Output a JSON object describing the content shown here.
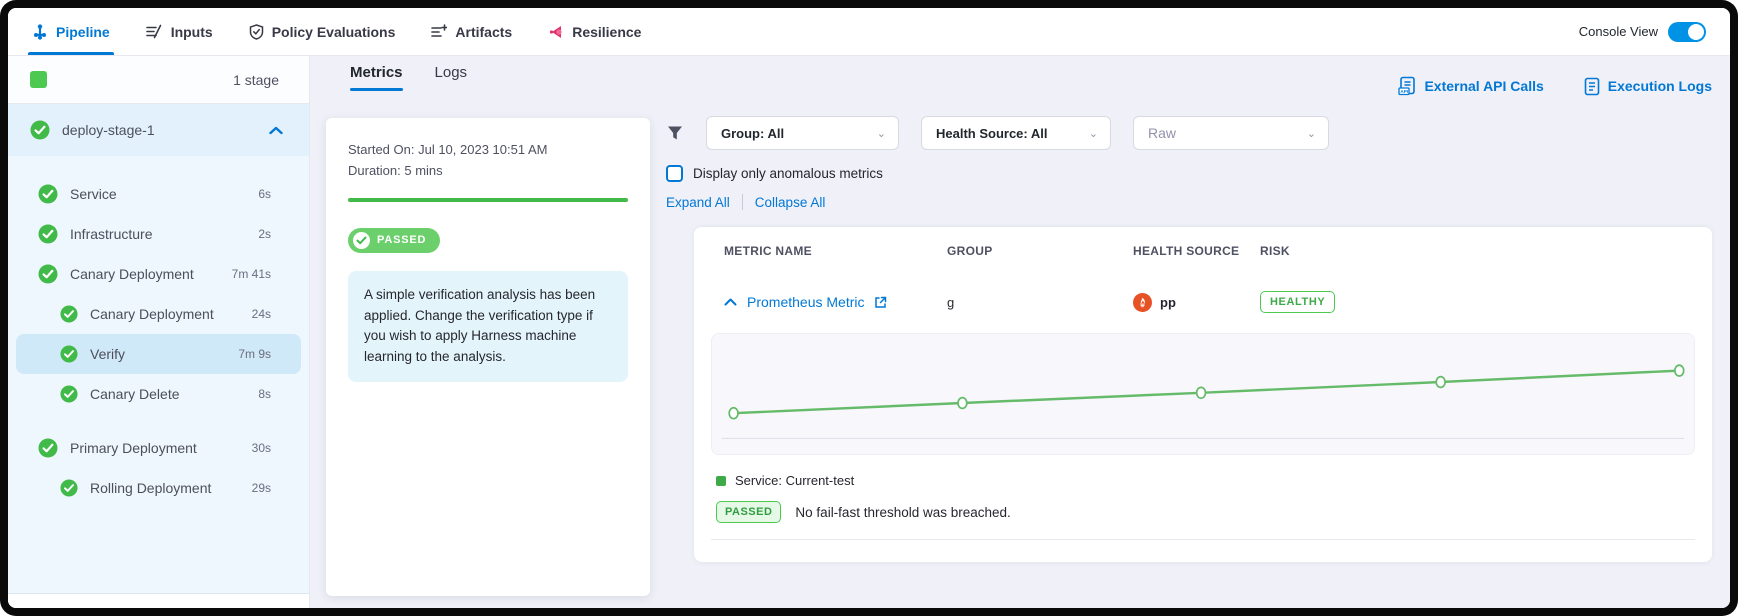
{
  "topnav": {
    "tabs": [
      {
        "label": "Pipeline",
        "active": true
      },
      {
        "label": "Inputs",
        "active": false
      },
      {
        "label": "Policy Evaluations",
        "active": false
      },
      {
        "label": "Artifacts",
        "active": false
      },
      {
        "label": "Resilience",
        "active": false
      }
    ],
    "console_view_label": "Console View",
    "console_view_on": true
  },
  "sidebar": {
    "stage_count": "1 stage",
    "stage_name": "deploy-stage-1",
    "steps": [
      {
        "label": "Service",
        "duration": "6s"
      },
      {
        "label": "Infrastructure",
        "duration": "2s"
      },
      {
        "label": "Canary Deployment",
        "duration": "7m 41s"
      },
      {
        "label": "Canary Deployment",
        "duration": "24s"
      },
      {
        "label": "Verify",
        "duration": "7m 9s"
      },
      {
        "label": "Canary Delete",
        "duration": "8s"
      },
      {
        "label": "Primary Deployment",
        "duration": "30s"
      },
      {
        "label": "Rolling Deployment",
        "duration": "29s"
      }
    ]
  },
  "middle": {
    "tabs": {
      "metrics": "Metrics",
      "logs": "Logs"
    },
    "started_on": "Started On: Jul 10, 2023 10:51 AM",
    "duration": "Duration: 5 mins",
    "status_badge": "PASSED",
    "message": "A simple verification analysis has been applied. Change the verification type if you wish to apply Harness machine learning to the analysis."
  },
  "right": {
    "external_api_calls": "External API Calls",
    "execution_logs": "Execution Logs",
    "filters": {
      "group": "Group: All",
      "health_source": "Health Source: All",
      "raw_placeholder": "Raw"
    },
    "anomalous_label": "Display only anomalous metrics",
    "expand_all": "Expand All",
    "collapse_all": "Collapse All",
    "table": {
      "headers": {
        "metric": "METRIC NAME",
        "group": "GROUP",
        "health": "HEALTH SOURCE",
        "risk": "RISK"
      },
      "row": {
        "metric_name": "Prometheus Metric",
        "group": "g",
        "health_source": "pp",
        "risk": "HEALTHY"
      }
    },
    "legend": "Service: Current-test",
    "verdict_badge": "PASSED",
    "verdict_text": "No fail-fast threshold was breached."
  },
  "chart_data": {
    "type": "line",
    "title": "",
    "xlabel": "",
    "ylabel": "",
    "axes_visible": false,
    "legend_position": "bottom",
    "series": [
      {
        "name": "Service: Current-test",
        "color": "#66bb6a",
        "points_rel": [
          [
            0.022,
            0.66
          ],
          [
            0.255,
            0.575
          ],
          [
            0.498,
            0.49
          ],
          [
            0.742,
            0.4
          ],
          [
            0.985,
            0.305
          ]
        ]
      }
    ],
    "baseline_y_rel": 0.87
  },
  "colors": {
    "accent_blue": "#0278d5",
    "toggle_blue": "#0092e4",
    "success_green": "#4dc952",
    "line_green": "#66bb6a",
    "prometheus_red": "#e75225",
    "sidebar_bg": "#edf7fd",
    "selected_step_bg": "#cfe9f8",
    "panel_bg": "#f0f0f8"
  }
}
